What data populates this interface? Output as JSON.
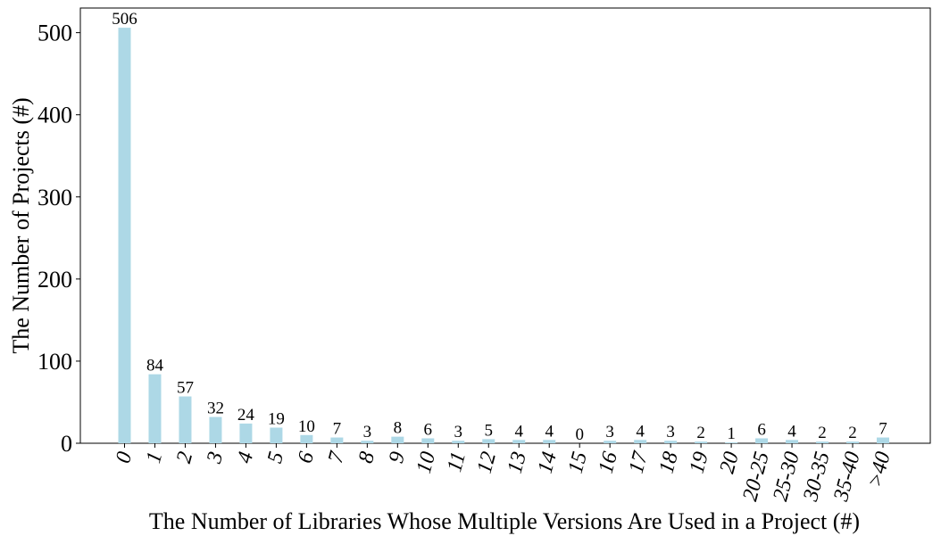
{
  "chart_data": {
    "type": "bar",
    "title": "",
    "xlabel": "The Number of Libraries Whose Multiple Versions Are Used in a Project (#)",
    "ylabel": "The Number of Projects (#)",
    "categories": [
      "0",
      "1",
      "2",
      "3",
      "4",
      "5",
      "6",
      "7",
      "8",
      "9",
      "10",
      "11",
      "12",
      "13",
      "14",
      "15",
      "16",
      "17",
      "18",
      "19",
      "20",
      "20-25",
      "25-30",
      "30-35",
      "35-40",
      ">40"
    ],
    "values": [
      506,
      84,
      57,
      32,
      24,
      19,
      10,
      7,
      3,
      8,
      6,
      3,
      5,
      4,
      4,
      0,
      3,
      4,
      3,
      2,
      1,
      6,
      4,
      2,
      2,
      7
    ],
    "ylim": [
      0,
      530
    ],
    "yticks": [
      0,
      100,
      200,
      300,
      400,
      500
    ],
    "grid": false,
    "bar_color": "#add8e6"
  }
}
